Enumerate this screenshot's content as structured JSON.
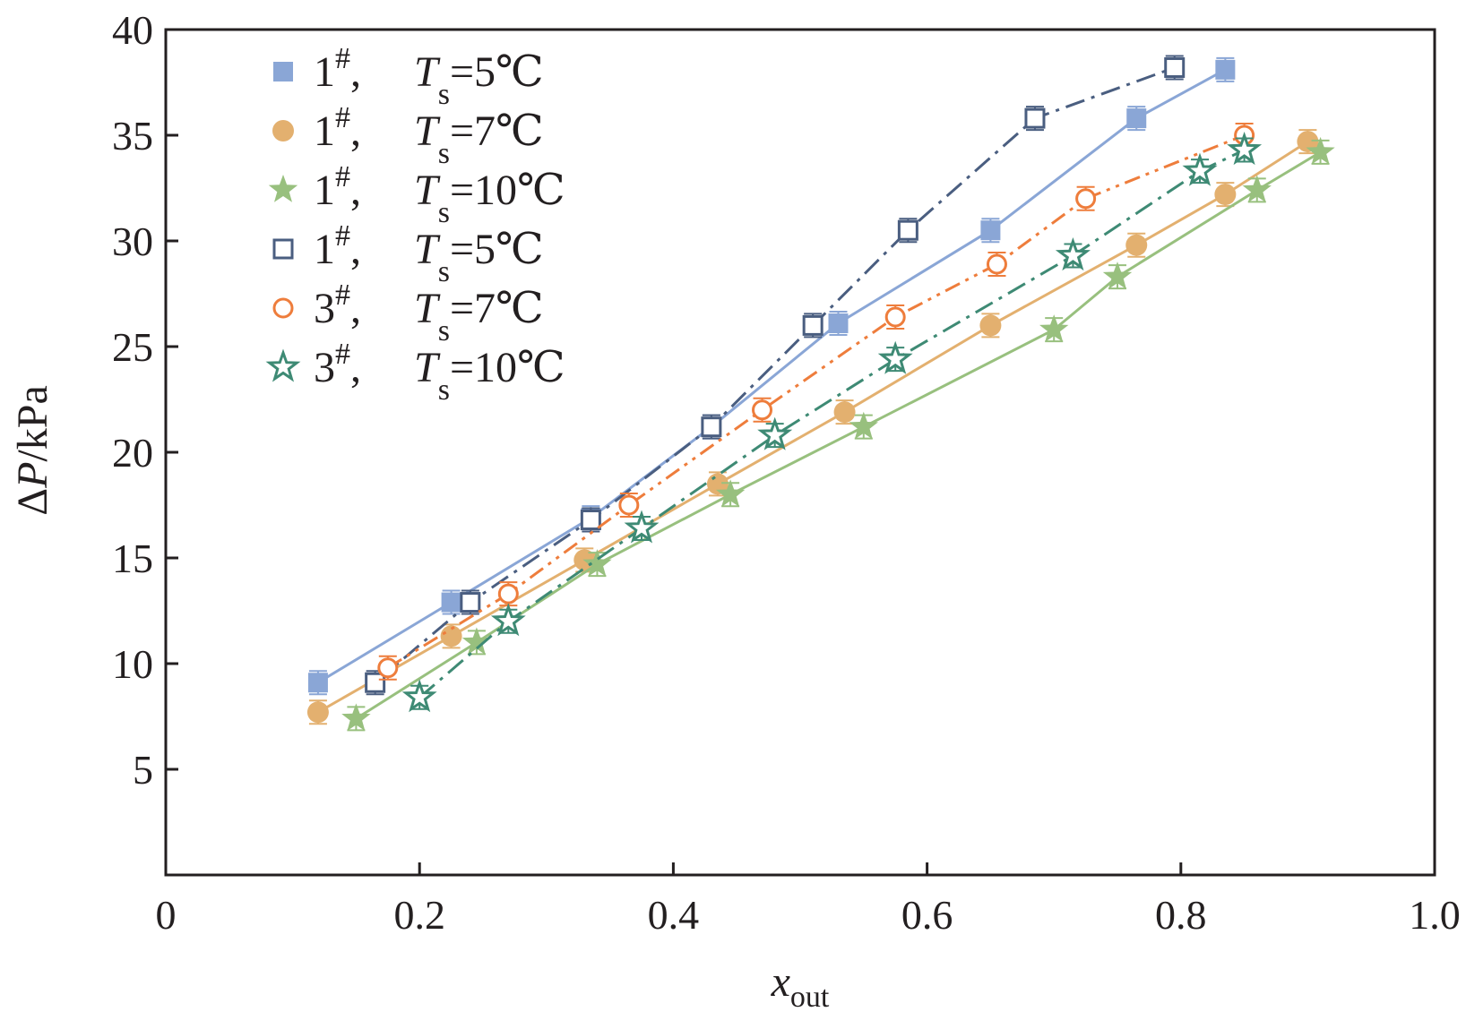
{
  "chart_data": {
    "type": "line",
    "title": "",
    "xlabel": {
      "main": "x",
      "sub": "out"
    },
    "ylabel": {
      "delta": "Δ",
      "var": "P",
      "unit": "/kPa"
    },
    "xlim": [
      0,
      1.0
    ],
    "ylim": [
      0,
      40
    ],
    "xticks": [
      0,
      0.2,
      0.4,
      0.6,
      0.8,
      1.0
    ],
    "xtick_labels": [
      "0",
      "0.2",
      "0.4",
      "0.6",
      "0.8",
      "1.0"
    ],
    "yticks": [
      5,
      10,
      15,
      20,
      25,
      30,
      35,
      40
    ],
    "ytick_labels": [
      "5",
      "10",
      "15",
      "20",
      "25",
      "30",
      "35",
      "40"
    ],
    "grid": false,
    "legend_position": "top-left",
    "series": [
      {
        "name": "1#, Ts=5℃ (filled square)",
        "num": "1",
        "sup": "#",
        "sep": ",",
        "T": "T",
        "sub": "s",
        "eq": "=5℃",
        "color": "#8aa6d6",
        "marker": "square-filled",
        "line": "solid",
        "x": [
          0.12,
          0.225,
          0.335,
          0.43,
          0.53,
          0.65,
          0.765,
          0.835
        ],
        "y": [
          9.1,
          12.9,
          16.9,
          21.2,
          26.1,
          30.5,
          35.8,
          38.1
        ]
      },
      {
        "name": "1#, Ts=7℃ (filled circle)",
        "num": "1",
        "sup": "#",
        "sep": ",",
        "T": "T",
        "sub": "s",
        "eq": "=7℃",
        "color": "#e3b06f",
        "marker": "circle-filled",
        "line": "solid",
        "x": [
          0.12,
          0.225,
          0.33,
          0.435,
          0.535,
          0.65,
          0.765,
          0.835,
          0.9
        ],
        "y": [
          7.7,
          11.3,
          14.9,
          18.5,
          21.9,
          26.0,
          29.8,
          32.2,
          34.7
        ]
      },
      {
        "name": "1#, Ts=10℃ (filled star)",
        "num": "1",
        "sup": "#",
        "sep": ",",
        "T": "T",
        "sub": "s",
        "eq": "=10℃",
        "color": "#98c07e",
        "marker": "star-filled",
        "line": "solid",
        "x": [
          0.15,
          0.245,
          0.34,
          0.445,
          0.55,
          0.7,
          0.75,
          0.86,
          0.91
        ],
        "y": [
          7.4,
          11.0,
          14.7,
          18.0,
          21.2,
          25.8,
          28.3,
          32.4,
          34.2
        ]
      },
      {
        "name": "1#, Ts=5℃ (open square)",
        "num": "1",
        "sup": "#",
        "sep": ",",
        "T": "T",
        "sub": "s",
        "eq": "=5℃",
        "color": "#4a5e80",
        "marker": "square-open",
        "line": "dashdot",
        "x": [
          0.165,
          0.24,
          0.335,
          0.43,
          0.51,
          0.585,
          0.685,
          0.795
        ],
        "y": [
          9.1,
          12.9,
          16.8,
          21.2,
          26.0,
          30.5,
          35.8,
          38.2
        ]
      },
      {
        "name": "3#, Ts=7℃ (open circle)",
        "num": "3",
        "sup": "#",
        "sep": ",",
        "T": "T",
        "sub": "s",
        "eq": "=7℃",
        "color": "#ee7d3c",
        "marker": "circle-open",
        "line": "dashdotdot",
        "x": [
          0.175,
          0.27,
          0.365,
          0.47,
          0.575,
          0.655,
          0.725,
          0.85
        ],
        "y": [
          9.8,
          13.3,
          17.5,
          22.0,
          26.4,
          28.9,
          32.0,
          35.0
        ]
      },
      {
        "name": "3#, Ts=10℃ (open star)",
        "num": "3",
        "sup": "#",
        "sep": ",",
        "T": "T",
        "sub": "s",
        "eq": "=10℃",
        "color": "#3e8a74",
        "marker": "star-open",
        "line": "dashdot",
        "x": [
          0.2,
          0.27,
          0.375,
          0.48,
          0.575,
          0.715,
          0.815,
          0.85
        ],
        "y": [
          8.4,
          12.0,
          16.4,
          20.8,
          24.4,
          29.3,
          33.3,
          34.3
        ]
      }
    ]
  }
}
